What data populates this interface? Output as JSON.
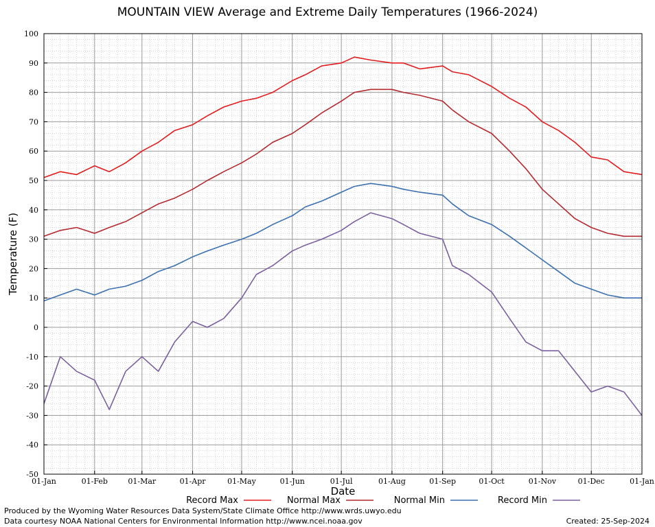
{
  "title": "MOUNTAIN VIEW Average and Extreme Daily Temperatures (1966-2024)",
  "footer": {
    "produced_by": "Produced by the Wyoming Water Resources Data System/State Climate Office http://www.wrds.uwyo.edu",
    "data_courtesy": "Data courtesy NOAA National Centers for Environmental Information http://www.ncei.noaa.gov",
    "created": "Created:  25-Sep-2024"
  },
  "chart_data": {
    "type": "line",
    "title": "MOUNTAIN VIEW Average and Extreme Daily Temperatures (1966-2024)",
    "xlabel": "Date",
    "ylabel": "Temperature (F)",
    "ylim": [
      -50,
      100
    ],
    "yticks": [
      -50,
      -40,
      -30,
      -20,
      -10,
      0,
      10,
      20,
      30,
      40,
      50,
      60,
      70,
      80,
      90,
      100
    ],
    "xlim": [
      0,
      366
    ],
    "xtick_labels": [
      "01-Jan",
      "01-Feb",
      "01-Mar",
      "01-Apr",
      "01-May",
      "01-Jun",
      "01-Jul",
      "01-Aug",
      "01-Sep",
      "01-Oct",
      "01-Nov",
      "01-Dec",
      "01-Jan"
    ],
    "xtick_days": [
      0,
      31,
      60,
      91,
      121,
      152,
      182,
      213,
      244,
      274,
      305,
      335,
      366
    ],
    "grid": true,
    "legend_position": "bottom",
    "series": [
      {
        "name": "Record Max",
        "color": "#e31a1c",
        "x": [
          0,
          10,
          20,
          31,
          40,
          50,
          60,
          70,
          80,
          91,
          100,
          110,
          121,
          130,
          140,
          152,
          160,
          170,
          182,
          190,
          200,
          213,
          220,
          230,
          244,
          250,
          260,
          274,
          285,
          295,
          305,
          315,
          325,
          335,
          345,
          355,
          366
        ],
        "y": [
          51,
          53,
          52,
          55,
          53,
          56,
          60,
          63,
          67,
          69,
          72,
          75,
          77,
          78,
          80,
          84,
          86,
          89,
          90,
          92,
          91,
          90,
          90,
          88,
          89,
          87,
          86,
          82,
          78,
          75,
          70,
          67,
          63,
          58,
          57,
          53,
          52
        ]
      },
      {
        "name": "Normal Max",
        "color": "#b2282c",
        "x": [
          0,
          10,
          20,
          31,
          40,
          50,
          60,
          70,
          80,
          91,
          100,
          110,
          121,
          130,
          140,
          152,
          160,
          170,
          182,
          190,
          200,
          213,
          220,
          230,
          244,
          250,
          260,
          274,
          285,
          295,
          305,
          315,
          325,
          335,
          345,
          355,
          366
        ],
        "y": [
          31,
          33,
          34,
          32,
          34,
          36,
          39,
          42,
          44,
          47,
          50,
          53,
          56,
          59,
          63,
          66,
          69,
          73,
          77,
          80,
          81,
          81,
          80,
          79,
          77,
          74,
          70,
          66,
          60,
          54,
          47,
          42,
          37,
          34,
          32,
          31,
          31
        ]
      },
      {
        "name": "Normal Min",
        "color": "#3a6fb0",
        "x": [
          0,
          10,
          20,
          31,
          40,
          50,
          60,
          70,
          80,
          91,
          100,
          110,
          121,
          130,
          140,
          152,
          160,
          170,
          182,
          190,
          200,
          213,
          220,
          230,
          244,
          250,
          260,
          274,
          285,
          295,
          305,
          315,
          325,
          335,
          345,
          355,
          366
        ],
        "y": [
          9,
          11,
          13,
          11,
          13,
          14,
          16,
          19,
          21,
          24,
          26,
          28,
          30,
          32,
          35,
          38,
          41,
          43,
          46,
          48,
          49,
          48,
          47,
          46,
          45,
          42,
          38,
          35,
          31,
          27,
          23,
          19,
          15,
          13,
          11,
          10,
          10
        ]
      },
      {
        "name": "Record Min",
        "color": "#7a5ea0",
        "x": [
          0,
          10,
          20,
          31,
          40,
          50,
          60,
          70,
          80,
          91,
          100,
          110,
          121,
          130,
          140,
          152,
          160,
          170,
          182,
          190,
          200,
          213,
          220,
          230,
          244,
          250,
          260,
          274,
          285,
          295,
          305,
          315,
          325,
          335,
          345,
          355,
          366
        ],
        "y": [
          -26,
          -10,
          -15,
          -18,
          -28,
          -15,
          -10,
          -15,
          -5,
          2,
          0,
          3,
          10,
          18,
          21,
          26,
          28,
          30,
          33,
          36,
          39,
          37,
          35,
          32,
          30,
          21,
          18,
          12,
          3,
          -5,
          -8,
          -8,
          -15,
          -22,
          -20,
          -22,
          -30
        ]
      }
    ]
  }
}
